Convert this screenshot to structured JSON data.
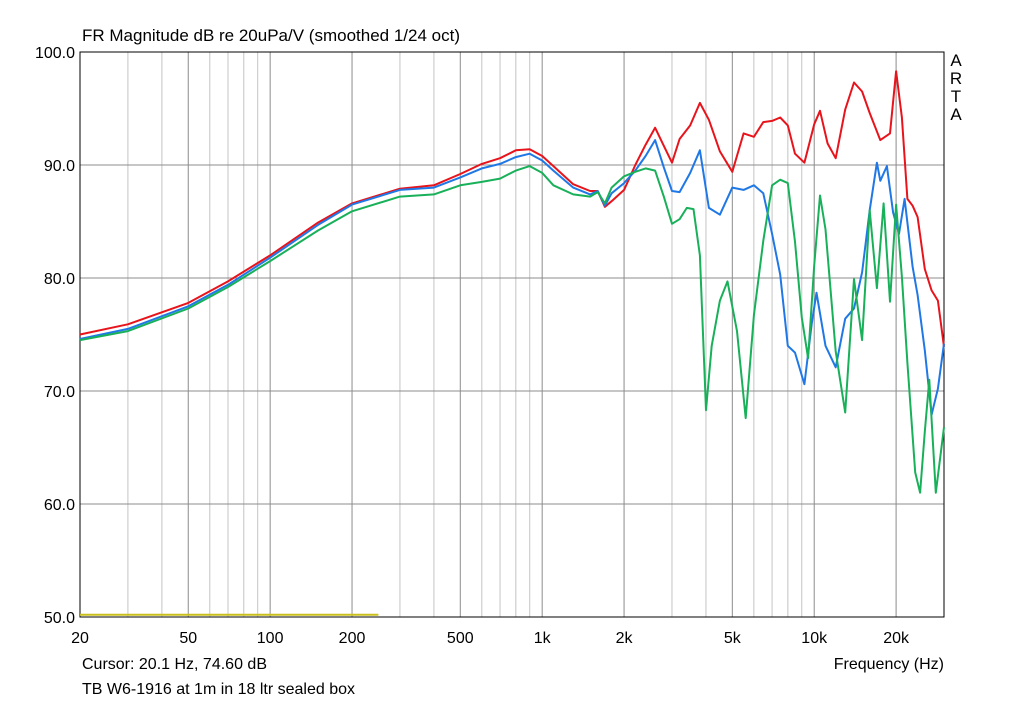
{
  "chart_data": {
    "type": "line",
    "title": "FR Magnitude dB re 20uPa/V (smoothed 1/24 oct)",
    "xlabel": "Frequency (Hz)",
    "ylabel": "",
    "xscale": "log",
    "xlim": [
      20,
      30000
    ],
    "ylim": [
      50,
      100
    ],
    "grid": true,
    "y_ticks": [
      "100.0",
      "90.0",
      "80.0",
      "70.0",
      "60.0",
      "50.0"
    ],
    "x_ticks": [
      {
        "value": 20,
        "label": "20"
      },
      {
        "value": 50,
        "label": "50"
      },
      {
        "value": 100,
        "label": "100"
      },
      {
        "value": 200,
        "label": "200"
      },
      {
        "value": 500,
        "label": "500"
      },
      {
        "value": 1000,
        "label": "1k"
      },
      {
        "value": 2000,
        "label": "2k"
      },
      {
        "value": 5000,
        "label": "5k"
      },
      {
        "value": 10000,
        "label": "10k"
      },
      {
        "value": 20000,
        "label": "20k"
      }
    ],
    "series": [
      {
        "color": "#e8141c",
        "points": [
          [
            20,
            75.0
          ],
          [
            30,
            75.9
          ],
          [
            50,
            77.8
          ],
          [
            70,
            79.7
          ],
          [
            100,
            82.0
          ],
          [
            150,
            84.9
          ],
          [
            200,
            86.6
          ],
          [
            300,
            87.9
          ],
          [
            400,
            88.2
          ],
          [
            500,
            89.2
          ],
          [
            600,
            90.1
          ],
          [
            700,
            90.6
          ],
          [
            800,
            91.3
          ],
          [
            900,
            91.4
          ],
          [
            1000,
            90.8
          ],
          [
            1100,
            89.9
          ],
          [
            1300,
            88.3
          ],
          [
            1500,
            87.7
          ],
          [
            1600,
            87.7
          ],
          [
            1700,
            86.3
          ],
          [
            1800,
            86.8
          ],
          [
            2000,
            87.8
          ],
          [
            2200,
            90.0
          ],
          [
            2400,
            91.8
          ],
          [
            2600,
            93.3
          ],
          [
            2800,
            91.7
          ],
          [
            3000,
            90.2
          ],
          [
            3200,
            92.3
          ],
          [
            3500,
            93.5
          ],
          [
            3800,
            95.5
          ],
          [
            4100,
            94.0
          ],
          [
            4500,
            91.2
          ],
          [
            5000,
            89.4
          ],
          [
            5500,
            92.8
          ],
          [
            6000,
            92.5
          ],
          [
            6500,
            93.8
          ],
          [
            7000,
            93.9
          ],
          [
            7500,
            94.2
          ],
          [
            8000,
            93.5
          ],
          [
            8500,
            91.0
          ],
          [
            9200,
            90.2
          ],
          [
            10000,
            93.6
          ],
          [
            10500,
            94.8
          ],
          [
            11200,
            91.9
          ],
          [
            12000,
            90.6
          ],
          [
            13000,
            94.9
          ],
          [
            14000,
            97.3
          ],
          [
            15000,
            96.5
          ],
          [
            16000,
            94.6
          ],
          [
            17500,
            92.2
          ],
          [
            19000,
            92.8
          ],
          [
            20000,
            98.3
          ],
          [
            21000,
            94.2
          ],
          [
            22000,
            87.0
          ],
          [
            23000,
            86.4
          ],
          [
            24000,
            85.4
          ],
          [
            25500,
            80.8
          ],
          [
            27000,
            78.9
          ],
          [
            28500,
            78.0
          ],
          [
            30000,
            73.9
          ]
        ]
      },
      {
        "color": "#1f78e6",
        "points": [
          [
            20,
            74.6
          ],
          [
            30,
            75.5
          ],
          [
            50,
            77.5
          ],
          [
            70,
            79.4
          ],
          [
            100,
            81.8
          ],
          [
            150,
            84.7
          ],
          [
            200,
            86.5
          ],
          [
            300,
            87.8
          ],
          [
            400,
            88.0
          ],
          [
            500,
            88.9
          ],
          [
            600,
            89.7
          ],
          [
            700,
            90.1
          ],
          [
            800,
            90.7
          ],
          [
            900,
            91.0
          ],
          [
            1000,
            90.4
          ],
          [
            1100,
            89.5
          ],
          [
            1300,
            88.0
          ],
          [
            1500,
            87.4
          ],
          [
            1600,
            87.7
          ],
          [
            1700,
            86.4
          ],
          [
            1800,
            87.5
          ],
          [
            2000,
            88.4
          ],
          [
            2200,
            89.5
          ],
          [
            2400,
            90.8
          ],
          [
            2600,
            92.2
          ],
          [
            2800,
            89.8
          ],
          [
            3000,
            87.7
          ],
          [
            3200,
            87.6
          ],
          [
            3500,
            89.3
          ],
          [
            3800,
            91.3
          ],
          [
            4100,
            86.2
          ],
          [
            4500,
            85.6
          ],
          [
            5000,
            88.0
          ],
          [
            5500,
            87.8
          ],
          [
            6000,
            88.2
          ],
          [
            6500,
            87.5
          ],
          [
            7000,
            83.9
          ],
          [
            7500,
            80.3
          ],
          [
            8000,
            74.0
          ],
          [
            8500,
            73.4
          ],
          [
            9200,
            70.6
          ],
          [
            9800,
            76.0
          ],
          [
            10200,
            78.7
          ],
          [
            11000,
            74.0
          ],
          [
            12000,
            72.1
          ],
          [
            13000,
            76.4
          ],
          [
            14000,
            77.3
          ],
          [
            15000,
            80.5
          ],
          [
            16000,
            86.0
          ],
          [
            17000,
            90.2
          ],
          [
            17500,
            88.6
          ],
          [
            18500,
            89.9
          ],
          [
            19500,
            85.8
          ],
          [
            20500,
            83.9
          ],
          [
            21500,
            87.0
          ],
          [
            23000,
            81.0
          ],
          [
            24000,
            78.5
          ],
          [
            25500,
            73.6
          ],
          [
            27000,
            67.9
          ],
          [
            28500,
            70.2
          ],
          [
            30000,
            74.2
          ]
        ]
      },
      {
        "color": "#19b05a",
        "points": [
          [
            20,
            74.5
          ],
          [
            30,
            75.3
          ],
          [
            50,
            77.3
          ],
          [
            70,
            79.2
          ],
          [
            100,
            81.5
          ],
          [
            150,
            84.2
          ],
          [
            200,
            85.9
          ],
          [
            300,
            87.2
          ],
          [
            400,
            87.4
          ],
          [
            500,
            88.2
          ],
          [
            600,
            88.5
          ],
          [
            700,
            88.8
          ],
          [
            800,
            89.5
          ],
          [
            900,
            89.9
          ],
          [
            1000,
            89.3
          ],
          [
            1100,
            88.2
          ],
          [
            1300,
            87.4
          ],
          [
            1500,
            87.2
          ],
          [
            1600,
            87.6
          ],
          [
            1700,
            86.6
          ],
          [
            1800,
            88.0
          ],
          [
            2000,
            89.0
          ],
          [
            2200,
            89.4
          ],
          [
            2400,
            89.7
          ],
          [
            2600,
            89.5
          ],
          [
            2800,
            87.2
          ],
          [
            3000,
            84.8
          ],
          [
            3200,
            85.2
          ],
          [
            3400,
            86.2
          ],
          [
            3600,
            86.1
          ],
          [
            3800,
            82.0
          ],
          [
            4000,
            68.3
          ],
          [
            4200,
            74.0
          ],
          [
            4500,
            78.0
          ],
          [
            4800,
            79.7
          ],
          [
            5200,
            75.3
          ],
          [
            5600,
            67.6
          ],
          [
            6000,
            76.7
          ],
          [
            6500,
            83.3
          ],
          [
            7000,
            88.2
          ],
          [
            7500,
            88.7
          ],
          [
            8000,
            88.4
          ],
          [
            8500,
            83.2
          ],
          [
            9000,
            76.5
          ],
          [
            9500,
            72.9
          ],
          [
            10000,
            81.1
          ],
          [
            10500,
            87.3
          ],
          [
            11000,
            84.3
          ],
          [
            12000,
            73.5
          ],
          [
            13000,
            68.1
          ],
          [
            14000,
            79.9
          ],
          [
            15000,
            74.5
          ],
          [
            16000,
            86.0
          ],
          [
            17000,
            79.1
          ],
          [
            18000,
            86.6
          ],
          [
            19000,
            77.9
          ],
          [
            20000,
            86.5
          ],
          [
            21000,
            80.1
          ],
          [
            22000,
            72.5
          ],
          [
            23500,
            62.8
          ],
          [
            24500,
            61.0
          ],
          [
            25500,
            66.4
          ],
          [
            26500,
            71.0
          ],
          [
            28000,
            61.0
          ],
          [
            30000,
            66.8
          ]
        ]
      },
      {
        "color": "#c9c01c",
        "points": [
          [
            20,
            50.2
          ],
          [
            250,
            50.2
          ]
        ]
      }
    ]
  },
  "cursor_readout": "Cursor: 20.1 Hz, 74.60 dB",
  "caption": "TB W6-1916 at 1m in 18 ltr sealed box",
  "brand": [
    "A",
    "R",
    "T",
    "A"
  ]
}
